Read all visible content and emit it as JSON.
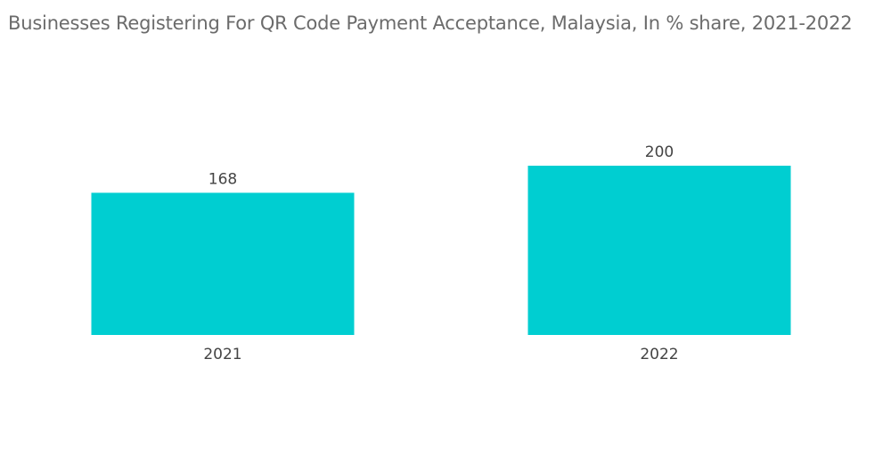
{
  "chart_data": {
    "type": "bar",
    "title": "Businesses Registering For QR Code Payment Acceptance, Malaysia, In % share, 2021-2022",
    "categories": [
      "2021",
      "2022"
    ],
    "values": [
      168,
      200
    ],
    "xlabel": "",
    "ylabel": "",
    "ylim": [
      0,
      200
    ],
    "bar_color": "#00ced1",
    "grid": false,
    "legend": "none"
  }
}
